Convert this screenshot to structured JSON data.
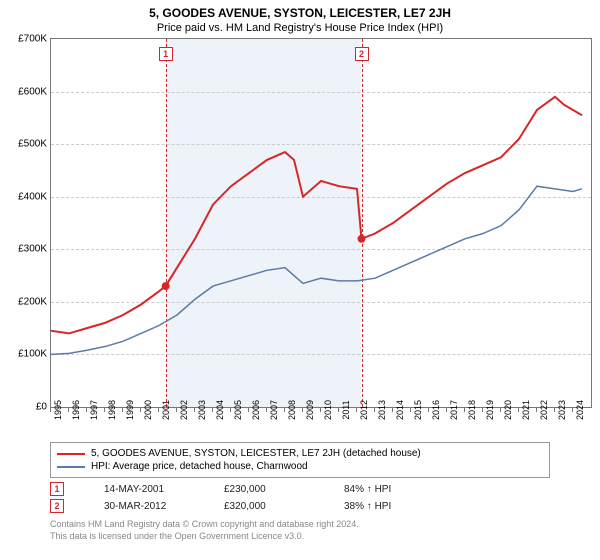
{
  "title": "5, GOODES AVENUE, SYSTON, LEICESTER, LE7 2JH",
  "subtitle": "Price paid vs. HM Land Registry's House Price Index (HPI)",
  "chart": {
    "type": "line",
    "x_min": 1995,
    "x_max": 2025,
    "y_min": 0,
    "y_max": 700000,
    "y_ticks": [
      0,
      100000,
      200000,
      300000,
      400000,
      500000,
      600000,
      700000
    ],
    "y_tick_labels": [
      "£0",
      "£100K",
      "£200K",
      "£300K",
      "£400K",
      "£500K",
      "£600K",
      "£700K"
    ],
    "x_ticks": [
      1995,
      1996,
      1997,
      1998,
      1999,
      2000,
      2001,
      2002,
      2003,
      2004,
      2005,
      2006,
      2007,
      2008,
      2009,
      2010,
      2011,
      2012,
      2013,
      2014,
      2015,
      2016,
      2017,
      2018,
      2019,
      2020,
      2021,
      2022,
      2023,
      2024
    ],
    "grid_color": "#cccccc",
    "shaded_band": {
      "from": 2001.37,
      "to": 2012.25,
      "color": "#eef3f9"
    },
    "background_color": "#ffffff",
    "series": [
      {
        "name": "property",
        "label": "5, GOODES AVENUE, SYSTON, LEICESTER, LE7 2JH (detached house)",
        "color": "#d62728",
        "width": 2,
        "points": [
          [
            1995,
            145000
          ],
          [
            1996,
            140000
          ],
          [
            1997,
            150000
          ],
          [
            1998,
            160000
          ],
          [
            1999,
            175000
          ],
          [
            2000,
            195000
          ],
          [
            2001,
            220000
          ],
          [
            2001.37,
            230000
          ],
          [
            2002,
            265000
          ],
          [
            2003,
            320000
          ],
          [
            2004,
            385000
          ],
          [
            2005,
            420000
          ],
          [
            2006,
            445000
          ],
          [
            2007,
            470000
          ],
          [
            2008,
            485000
          ],
          [
            2008.5,
            470000
          ],
          [
            2009,
            400000
          ],
          [
            2010,
            430000
          ],
          [
            2011,
            420000
          ],
          [
            2012,
            415000
          ],
          [
            2012.25,
            320000
          ],
          [
            2013,
            330000
          ],
          [
            2014,
            350000
          ],
          [
            2015,
            375000
          ],
          [
            2016,
            400000
          ],
          [
            2017,
            425000
          ],
          [
            2018,
            445000
          ],
          [
            2019,
            460000
          ],
          [
            2020,
            475000
          ],
          [
            2021,
            510000
          ],
          [
            2022,
            565000
          ],
          [
            2023,
            590000
          ],
          [
            2023.5,
            575000
          ],
          [
            2024,
            565000
          ],
          [
            2024.5,
            555000
          ]
        ]
      },
      {
        "name": "hpi",
        "label": "HPI: Average price, detached house, Charnwood",
        "color": "#5b7ba5",
        "width": 1.5,
        "points": [
          [
            1995,
            100000
          ],
          [
            1996,
            102000
          ],
          [
            1997,
            108000
          ],
          [
            1998,
            115000
          ],
          [
            1999,
            125000
          ],
          [
            2000,
            140000
          ],
          [
            2001,
            155000
          ],
          [
            2002,
            175000
          ],
          [
            2003,
            205000
          ],
          [
            2004,
            230000
          ],
          [
            2005,
            240000
          ],
          [
            2006,
            250000
          ],
          [
            2007,
            260000
          ],
          [
            2008,
            265000
          ],
          [
            2009,
            235000
          ],
          [
            2010,
            245000
          ],
          [
            2011,
            240000
          ],
          [
            2012,
            240000
          ],
          [
            2013,
            245000
          ],
          [
            2014,
            260000
          ],
          [
            2015,
            275000
          ],
          [
            2016,
            290000
          ],
          [
            2017,
            305000
          ],
          [
            2018,
            320000
          ],
          [
            2019,
            330000
          ],
          [
            2020,
            345000
          ],
          [
            2021,
            375000
          ],
          [
            2022,
            420000
          ],
          [
            2023,
            415000
          ],
          [
            2024,
            410000
          ],
          [
            2024.5,
            415000
          ]
        ]
      }
    ],
    "sale_markers": [
      {
        "n": 1,
        "x": 2001.37,
        "y": 230000
      },
      {
        "n": 2,
        "x": 2012.25,
        "y": 320000
      }
    ]
  },
  "legend": {
    "items": [
      {
        "color": "#d62728",
        "label": "5, GOODES AVENUE, SYSTON, LEICESTER, LE7 2JH (detached house)"
      },
      {
        "color": "#5b7ba5",
        "label": "HPI: Average price, detached house, Charnwood"
      }
    ]
  },
  "sales": [
    {
      "n": "1",
      "date": "14-MAY-2001",
      "price": "£230,000",
      "pct": "84% ↑ HPI"
    },
    {
      "n": "2",
      "date": "30-MAR-2012",
      "price": "£320,000",
      "pct": "38% ↑ HPI"
    }
  ],
  "footnote1": "Contains HM Land Registry data © Crown copyright and database right 2024.",
  "footnote2": "This data is licensed under the Open Government Licence v3.0."
}
